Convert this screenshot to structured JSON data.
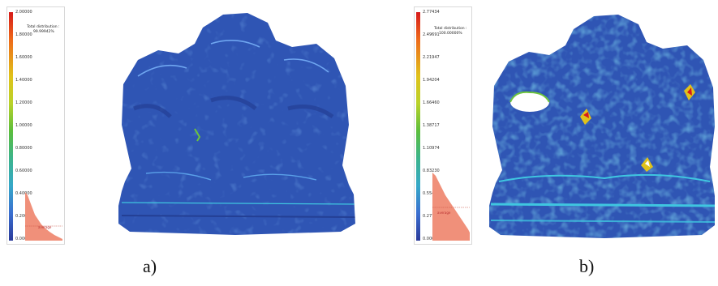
{
  "panels": [
    {
      "caption": "a)",
      "legend": {
        "title": "Total distribution :",
        "value": "99.99942%",
        "average_label": "average",
        "ticks": [
          "2.00000",
          "1.80000",
          "1.60000",
          "1.40000",
          "1.20000",
          "1.00000",
          "0.80000",
          "0.60000",
          "0.40000",
          "0.20000",
          "0.00000"
        ]
      }
    },
    {
      "caption": "b)",
      "legend": {
        "title": "Total distribution :",
        "value": "100.00000%",
        "average_label": "average",
        "ticks": [
          "2.77434",
          "2.49691",
          "2.21947",
          "1.94204",
          "1.66460",
          "1.38717",
          "1.10974",
          "0.83230",
          "0.55487",
          "0.27743",
          "0.00000"
        ]
      }
    }
  ],
  "colors": {
    "model_base": "#2f55b4",
    "model_dark": "#243f94",
    "highlight_cyan": "#3fc6e0",
    "highlight_green": "#6cc43c",
    "histogram": "#f0907a"
  }
}
